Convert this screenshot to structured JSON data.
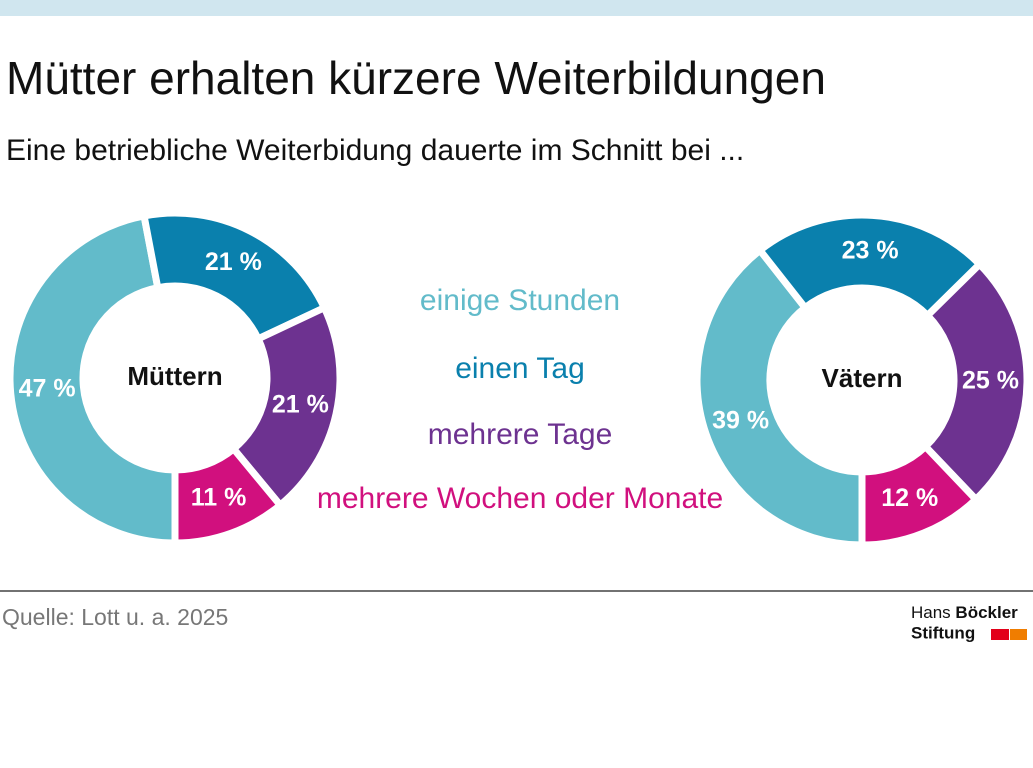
{
  "title": "Mütter erhalten kürzere Weiterbildungen",
  "subtitle": "Eine betriebliche Weiterbidung dauerte im Schnitt bei ...",
  "source": "Quelle: Lott u. a. 2025",
  "logo": {
    "line1": "Hans",
    "line1_bold": "Böckler",
    "line2": "Stiftung"
  },
  "chart_data": [
    {
      "type": "donut",
      "center_label": "Müttern",
      "categories": [
        "einige Stunden",
        "einen Tag",
        "mehrere Tage",
        "mehrere Wochen oder Monate"
      ],
      "values": [
        47,
        21,
        21,
        11
      ],
      "value_labels": [
        "47 %",
        "21 %",
        "21 %",
        "11 %"
      ],
      "colors": [
        "#62bbca",
        "#0a80ad",
        "#6d3290",
        "#d1107e"
      ]
    },
    {
      "type": "donut",
      "center_label": "Vätern",
      "categories": [
        "einige Stunden",
        "einen Tag",
        "mehrere Tage",
        "mehrere Wochen oder Monate"
      ],
      "values": [
        39,
        23,
        25,
        12
      ],
      "value_labels": [
        "39 %",
        "23 %",
        "25 %",
        "12 %"
      ],
      "colors": [
        "#62bbca",
        "#0a80ad",
        "#6d3290",
        "#d1107e"
      ]
    }
  ]
}
